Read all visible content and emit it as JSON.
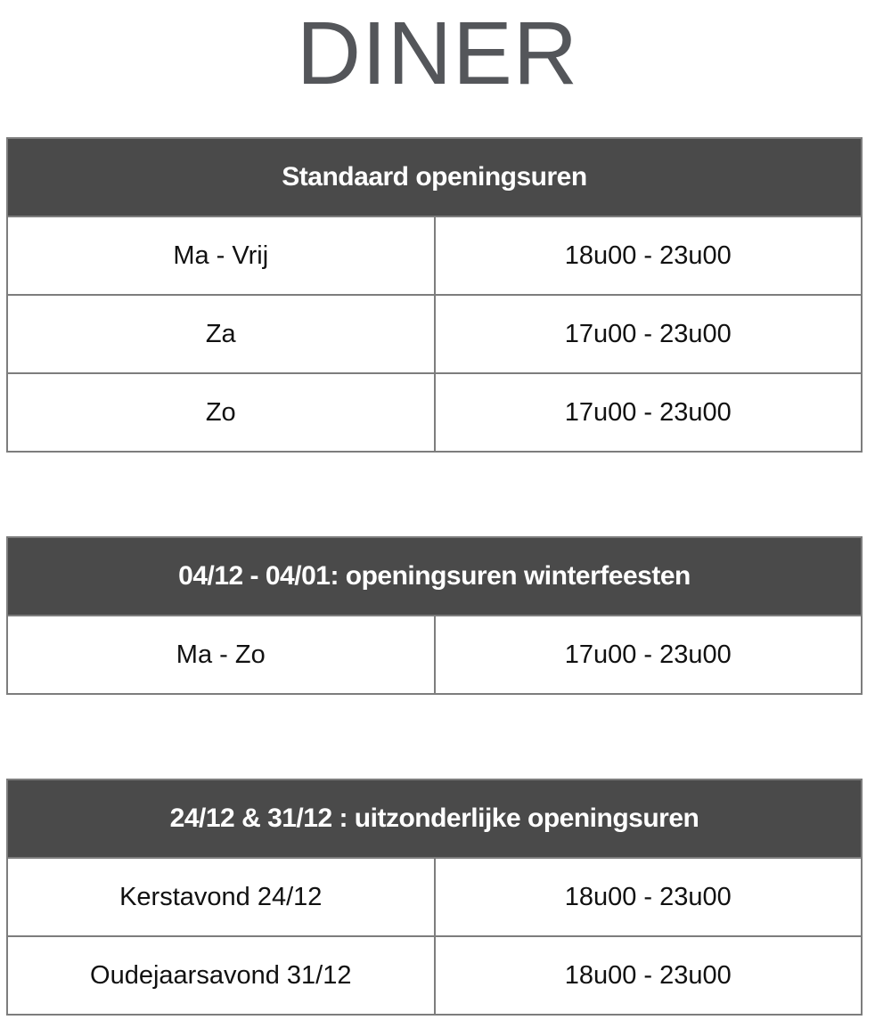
{
  "page": {
    "title": "DINER"
  },
  "colors": {
    "background": "#ffffff",
    "title_text": "#54565a",
    "header_bg": "#4a4a4a",
    "header_text": "#ffffff",
    "border": "#7d7d7d",
    "cell_text": "#111111"
  },
  "tables": [
    {
      "header": "Standaard openingsuren",
      "rows": [
        {
          "label": "Ma - Vrij",
          "hours": "18u00 - 23u00"
        },
        {
          "label": "Za",
          "hours": "17u00 - 23u00"
        },
        {
          "label": "Zo",
          "hours": "17u00 - 23u00"
        }
      ]
    },
    {
      "header": "04/12 - 04/01: openingsuren winterfeesten",
      "rows": [
        {
          "label": "Ma - Zo",
          "hours": "17u00 - 23u00"
        }
      ]
    },
    {
      "header": "24/12 & 31/12 : uitzonderlijke openingsuren",
      "rows": [
        {
          "label": "Kerstavond 24/12",
          "hours": "18u00 - 23u00"
        },
        {
          "label": "Oudejaarsavond 31/12",
          "hours": "18u00 - 23u00"
        }
      ]
    }
  ]
}
